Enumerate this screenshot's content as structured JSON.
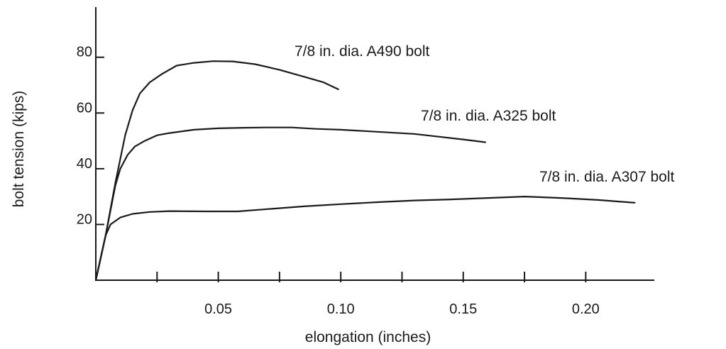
{
  "chart_data": {
    "type": "line",
    "title": "",
    "xlabel": "elongation (inches)",
    "ylabel": "bolt tension (kips)",
    "xlim": [
      0,
      0.228
    ],
    "ylim": [
      0,
      98
    ],
    "xticks_major": [
      0.05,
      0.1,
      0.15,
      0.2
    ],
    "xtick_labels": [
      "0.05",
      "0.10",
      "0.15",
      "0.20"
    ],
    "xticks_minor": [
      0.025,
      0.075,
      0.125,
      0.175
    ],
    "yticks": [
      20,
      40,
      60,
      80
    ],
    "ytick_labels": [
      "20",
      "40",
      "60",
      "80"
    ],
    "grid": false,
    "legend": "none",
    "series": [
      {
        "name": "7/8 in. dia. A490 bolt",
        "x": [
          0,
          0.004,
          0.008,
          0.012,
          0.015,
          0.018,
          0.022,
          0.027,
          0.033,
          0.04,
          0.048,
          0.056,
          0.065,
          0.075,
          0.085,
          0.093,
          0.099
        ],
        "y": [
          0,
          16,
          35,
          52,
          61,
          67,
          71,
          74,
          77,
          78,
          78.6,
          78.5,
          77.5,
          75.5,
          73,
          71,
          68.5
        ]
      },
      {
        "name": "7/8 in. dia. A325 bolt",
        "x": [
          0,
          0.004,
          0.008,
          0.01,
          0.013,
          0.016,
          0.02,
          0.025,
          0.03,
          0.04,
          0.05,
          0.06,
          0.07,
          0.08,
          0.09,
          0.1,
          0.11,
          0.12,
          0.13,
          0.14,
          0.15,
          0.159
        ],
        "y": [
          0,
          16,
          34,
          40,
          45,
          48,
          50,
          52,
          52.8,
          54,
          54.5,
          54.7,
          54.8,
          54.8,
          54.3,
          54,
          53.5,
          53,
          52.5,
          51.5,
          50.5,
          49.5
        ]
      },
      {
        "name": "7/8 in. dia. A307 bolt",
        "x": [
          0,
          0.004,
          0.006,
          0.01,
          0.015,
          0.022,
          0.03,
          0.045,
          0.058,
          0.07,
          0.085,
          0.1,
          0.115,
          0.13,
          0.145,
          0.16,
          0.175,
          0.19,
          0.205,
          0.22
        ],
        "y": [
          0,
          16,
          20,
          22.5,
          23.8,
          24.5,
          24.8,
          24.7,
          24.7,
          25.5,
          26.5,
          27.3,
          28,
          28.6,
          29,
          29.5,
          30,
          29.5,
          28.8,
          27.8
        ]
      }
    ]
  }
}
